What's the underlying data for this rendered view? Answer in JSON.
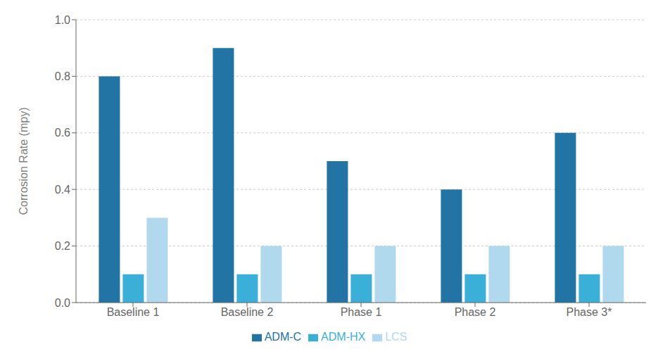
{
  "chart_data": {
    "type": "bar",
    "categories": [
      "Baseline 1",
      "Baseline 2",
      "Phase 1",
      "Phase 2",
      "Phase 3*"
    ],
    "series": [
      {
        "name": "ADM-C",
        "color": "#2274a5",
        "values": [
          0.8,
          0.9,
          0.5,
          0.4,
          0.6
        ]
      },
      {
        "name": "ADM-HX",
        "color": "#3ab0d8",
        "values": [
          0.1,
          0.1,
          0.1,
          0.1,
          0.1
        ]
      },
      {
        "name": "LCS",
        "color": "#b0d9ee",
        "values": [
          0.3,
          0.2,
          0.2,
          0.2,
          0.2
        ]
      }
    ],
    "ylabel": "Corrosion Rate (mpy)",
    "ylim": [
      0.0,
      1.0
    ],
    "yticks": [
      {
        "value": 0,
        "label": "0.0"
      },
      0.2,
      0.4,
      0.6,
      0.8,
      {
        "value": 1,
        "label": "1.0"
      }
    ],
    "grid": true,
    "legend": "bottom"
  }
}
